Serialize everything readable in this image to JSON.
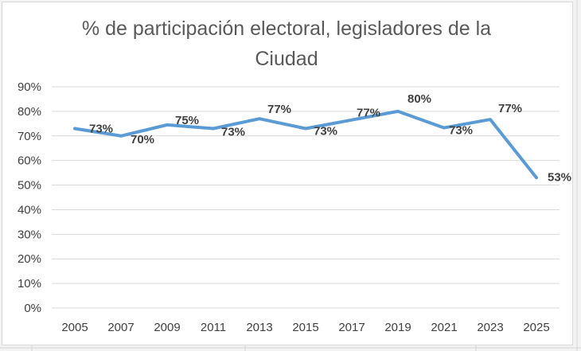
{
  "chart_data": {
    "type": "line",
    "title": "% de participación electoral, legisladores de la Ciudad",
    "xlabel": "",
    "ylabel": "",
    "categories": [
      "2005",
      "2007",
      "2009",
      "2011",
      "2013",
      "2015",
      "2017",
      "2019",
      "2021",
      "2023",
      "2025"
    ],
    "series": [
      {
        "values": [
          73,
          70,
          74.5,
          73,
          77,
          73,
          76.5,
          80,
          73.3,
          76.7,
          53
        ],
        "data_labels": [
          "73%",
          "70%",
          "75%",
          "73%",
          "77%",
          "73%",
          "77%",
          "80%",
          "73%",
          "77%",
          "53%"
        ],
        "color": "#5b9bd5"
      }
    ],
    "ylim": [
      0,
      90
    ],
    "y_ticks": [
      0,
      10,
      20,
      30,
      40,
      50,
      60,
      70,
      80,
      90
    ],
    "y_tick_labels": [
      "0%",
      "10%",
      "20%",
      "30%",
      "40%",
      "50%",
      "60%",
      "70%",
      "80%",
      "90%"
    ],
    "grid": true,
    "legend": "none"
  }
}
